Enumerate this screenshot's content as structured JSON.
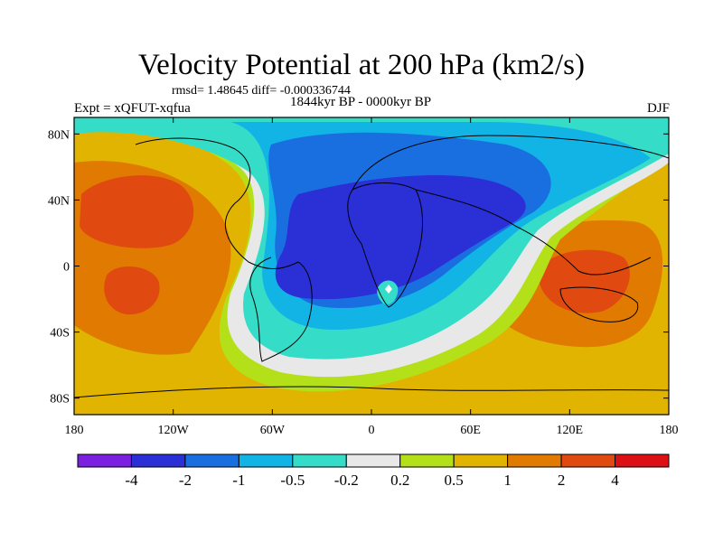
{
  "title": "Velocity Potential at 200 hPa (km2/s)",
  "stats": "rmsd= 1.48645 diff= -0.000336744",
  "period": "1844kyr BP - 0000kyr BP",
  "experiment": "Expt = xQFUT-xqfua",
  "season": "DJF",
  "chart_data": {
    "type": "heatmap",
    "title": "Velocity Potential at 200 hPa (km2/s)",
    "subtitle": "1844kyr BP - 0000kyr BP",
    "xlim": [
      -180,
      180
    ],
    "ylim": [
      -90,
      90
    ],
    "x_ticks": [
      {
        "value": -180,
        "label": "180"
      },
      {
        "value": -120,
        "label": "120W"
      },
      {
        "value": -60,
        "label": "60W"
      },
      {
        "value": 0,
        "label": "0"
      },
      {
        "value": 60,
        "label": "60E"
      },
      {
        "value": 120,
        "label": "120E"
      },
      {
        "value": 180,
        "label": "180"
      }
    ],
    "y_ticks": [
      {
        "value": 80,
        "label": "80N"
      },
      {
        "value": 40,
        "label": "40N"
      },
      {
        "value": 0,
        "label": "0"
      },
      {
        "value": -40,
        "label": "40S"
      },
      {
        "value": -80,
        "label": "80S"
      }
    ],
    "colorbar": {
      "levels": [
        "-4",
        "-2",
        "-1",
        "-0.5",
        "-0.2",
        "0.2",
        "0.5",
        "1",
        "2",
        "4"
      ],
      "colors": [
        "#7b1fe0",
        "#2a2fd6",
        "#1a6fe0",
        "#12b4e6",
        "#35dcc8",
        "#e8e8e8",
        "#b4e01a",
        "#e0b400",
        "#e07a00",
        "#e04a10",
        "#dc0f14"
      ]
    },
    "features": [
      {
        "name": "negative center",
        "lon": 20,
        "lat": 20,
        "value": "below -2"
      },
      {
        "name": "positive center central Pacific",
        "lon": -150,
        "lat": 40,
        "value": "2 to 4"
      },
      {
        "name": "positive center Maritime Continent",
        "lon": 135,
        "lat": -5,
        "value": "2 to 4"
      },
      {
        "name": "positive center south Pacific",
        "lon": -135,
        "lat": -20,
        "value": "2 to 4"
      }
    ],
    "grid": false
  }
}
